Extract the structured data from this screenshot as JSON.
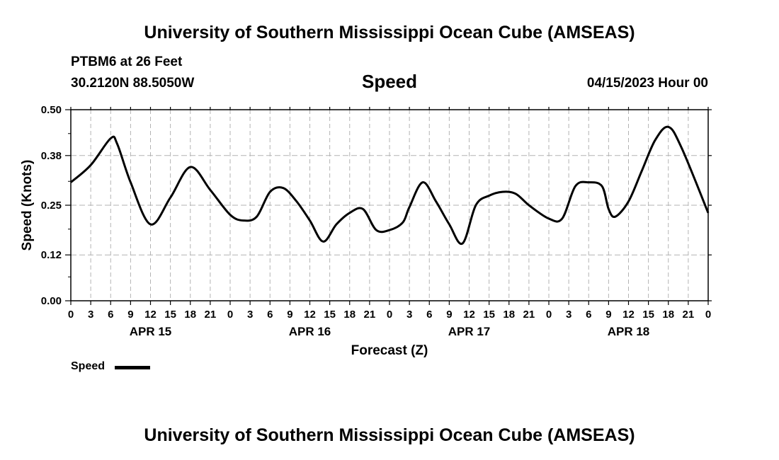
{
  "header": {
    "title_top": "University of Southern Mississippi Ocean Cube (AMSEAS)",
    "station": "PTBM6 at 26 Feet",
    "coords": "30.2120N  88.5050W",
    "chart_title": "Speed",
    "datetime": "04/15/2023 Hour 00"
  },
  "footer": {
    "title_bottom": "University of Southern Mississippi Ocean Cube (AMSEAS)"
  },
  "chart_data": {
    "type": "line",
    "title": "Speed",
    "xlabel": "Forecast (Z)",
    "ylabel": "Speed (Knots)",
    "ylim": [
      0,
      0.5
    ],
    "yticks": [
      "0.00",
      "0.12",
      "0.25",
      "0.38",
      "0.50"
    ],
    "xlim": [
      0,
      96
    ],
    "xtick_hours": [
      0,
      3,
      6,
      9,
      12,
      15,
      18,
      21,
      24,
      27,
      30,
      33,
      36,
      39,
      42,
      45,
      48,
      51,
      54,
      57,
      60,
      63,
      66,
      69,
      72,
      75,
      78,
      81,
      84,
      87,
      90,
      93,
      96
    ],
    "xtick_labels": [
      "0",
      "3",
      "6",
      "9",
      "12",
      "15",
      "18",
      "21",
      "0",
      "3",
      "6",
      "9",
      "12",
      "15",
      "18",
      "21",
      "0",
      "3",
      "6",
      "9",
      "12",
      "15",
      "18",
      "21",
      "0",
      "3",
      "6",
      "9",
      "12",
      "15",
      "18",
      "21",
      "0"
    ],
    "day_labels": [
      {
        "label": "APR 15",
        "hour": 12
      },
      {
        "label": "APR 16",
        "hour": 36
      },
      {
        "label": "APR 17",
        "hour": 60
      },
      {
        "label": "APR 18",
        "hour": 84
      }
    ],
    "grid": true,
    "series": [
      {
        "name": "Speed",
        "x": [
          0,
          3,
          6,
          7,
          9,
          12,
          15,
          18,
          21,
          24,
          26,
          28,
          30,
          32,
          34,
          36,
          38,
          40,
          42,
          44,
          46,
          48,
          50,
          51,
          53,
          55,
          57,
          59,
          61,
          63,
          65,
          67,
          69,
          72,
          74,
          76,
          78,
          80,
          81,
          82,
          84,
          86,
          88,
          90,
          92,
          96
        ],
        "values": [
          0.31,
          0.355,
          0.425,
          0.41,
          0.31,
          0.2,
          0.27,
          0.35,
          0.29,
          0.225,
          0.21,
          0.22,
          0.285,
          0.295,
          0.26,
          0.21,
          0.155,
          0.2,
          0.23,
          0.24,
          0.185,
          0.185,
          0.205,
          0.245,
          0.31,
          0.26,
          0.2,
          0.15,
          0.25,
          0.275,
          0.285,
          0.28,
          0.25,
          0.215,
          0.215,
          0.3,
          0.31,
          0.3,
          0.24,
          0.22,
          0.26,
          0.34,
          0.42,
          0.455,
          0.4,
          0.23
        ]
      }
    ],
    "legend": {
      "label": "Speed",
      "position": "bottom-left"
    }
  }
}
